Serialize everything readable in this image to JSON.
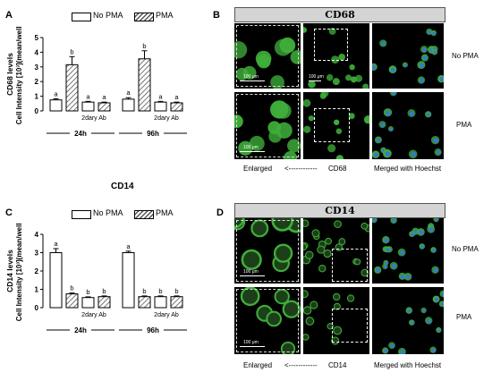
{
  "panels": {
    "A": {
      "letter": "A",
      "legend": [
        "No PMA",
        "PMA"
      ]
    },
    "B": {
      "letter": "B",
      "header": "CD68",
      "conditions": [
        "No PMA",
        "PMA"
      ],
      "bottom": {
        "enlarged": "Enlarged",
        "arrow": "<------------",
        "marker": "CD68",
        "merged": "Merged with Hoechst"
      }
    },
    "C": {
      "letter": "C",
      "title": "CD14",
      "legend": [
        "No PMA",
        "PMA"
      ]
    },
    "D": {
      "letter": "D",
      "header": "CD14",
      "conditions": [
        "No PMA",
        "PMA"
      ],
      "bottom": {
        "enlarged": "Enlarged",
        "arrow": "<------------",
        "marker": "CD14",
        "merged": "Merged with Hoechst"
      }
    }
  },
  "scale_bar_label": "100 μm",
  "colors": {
    "fluorescence_green": "#3fae3a",
    "nuclei_blue": "#3a78c8",
    "hatch": "#555555"
  },
  "chart_data": [
    {
      "type": "bar",
      "ylabel_line1": "CD68 levels",
      "ylabel_line2": "Cell Intensity [10³](mean/well)",
      "ylim": [
        0,
        5
      ],
      "yticks": [
        0,
        1,
        2,
        3,
        4,
        5
      ],
      "groups": [
        "24h",
        "96h"
      ],
      "sublabel": "2dary Ab",
      "bars": [
        {
          "group": "24h",
          "pattern": "open",
          "value": 0.75,
          "err": 0.08,
          "letter": "a"
        },
        {
          "group": "24h",
          "pattern": "hatch",
          "value": 3.15,
          "err": 0.55,
          "letter": "b"
        },
        {
          "group": "24h",
          "pattern": "open",
          "value": 0.6,
          "err": 0.05,
          "letter": "a"
        },
        {
          "group": "24h",
          "pattern": "hatch",
          "value": 0.55,
          "err": 0.05,
          "letter": "a"
        },
        {
          "group": "96h",
          "pattern": "open",
          "value": 0.8,
          "err": 0.1,
          "letter": "a"
        },
        {
          "group": "96h",
          "pattern": "hatch",
          "value": 3.55,
          "err": 0.55,
          "letter": "b"
        },
        {
          "group": "96h",
          "pattern": "open",
          "value": 0.6,
          "err": 0.05,
          "letter": "a"
        },
        {
          "group": "96h",
          "pattern": "hatch",
          "value": 0.55,
          "err": 0.05,
          "letter": "a"
        }
      ]
    },
    {
      "type": "bar",
      "ylabel_line1": "CD14 levels",
      "ylabel_line2": "Cell Intensity [10³](mean/well)",
      "ylim": [
        0,
        4
      ],
      "yticks": [
        0,
        1,
        2,
        3,
        4
      ],
      "groups": [
        "24h",
        "96h"
      ],
      "sublabel": "2dary Ab",
      "bars": [
        {
          "group": "24h",
          "pattern": "open",
          "value": 3.0,
          "err": 0.22,
          "letter": "a"
        },
        {
          "group": "24h",
          "pattern": "hatch",
          "value": 0.75,
          "err": 0.05,
          "letter": "b"
        },
        {
          "group": "24h",
          "pattern": "open",
          "value": 0.55,
          "err": 0.04,
          "letter": "b"
        },
        {
          "group": "24h",
          "pattern": "hatch",
          "value": 0.6,
          "err": 0.04,
          "letter": "b"
        },
        {
          "group": "96h",
          "pattern": "open",
          "value": 3.0,
          "err": 0.08,
          "letter": "a"
        },
        {
          "group": "96h",
          "pattern": "hatch",
          "value": 0.6,
          "err": 0.04,
          "letter": "b"
        },
        {
          "group": "96h",
          "pattern": "open",
          "value": 0.6,
          "err": 0.04,
          "letter": "b"
        },
        {
          "group": "96h",
          "pattern": "hatch",
          "value": 0.6,
          "err": 0.04,
          "letter": "b"
        }
      ]
    }
  ]
}
